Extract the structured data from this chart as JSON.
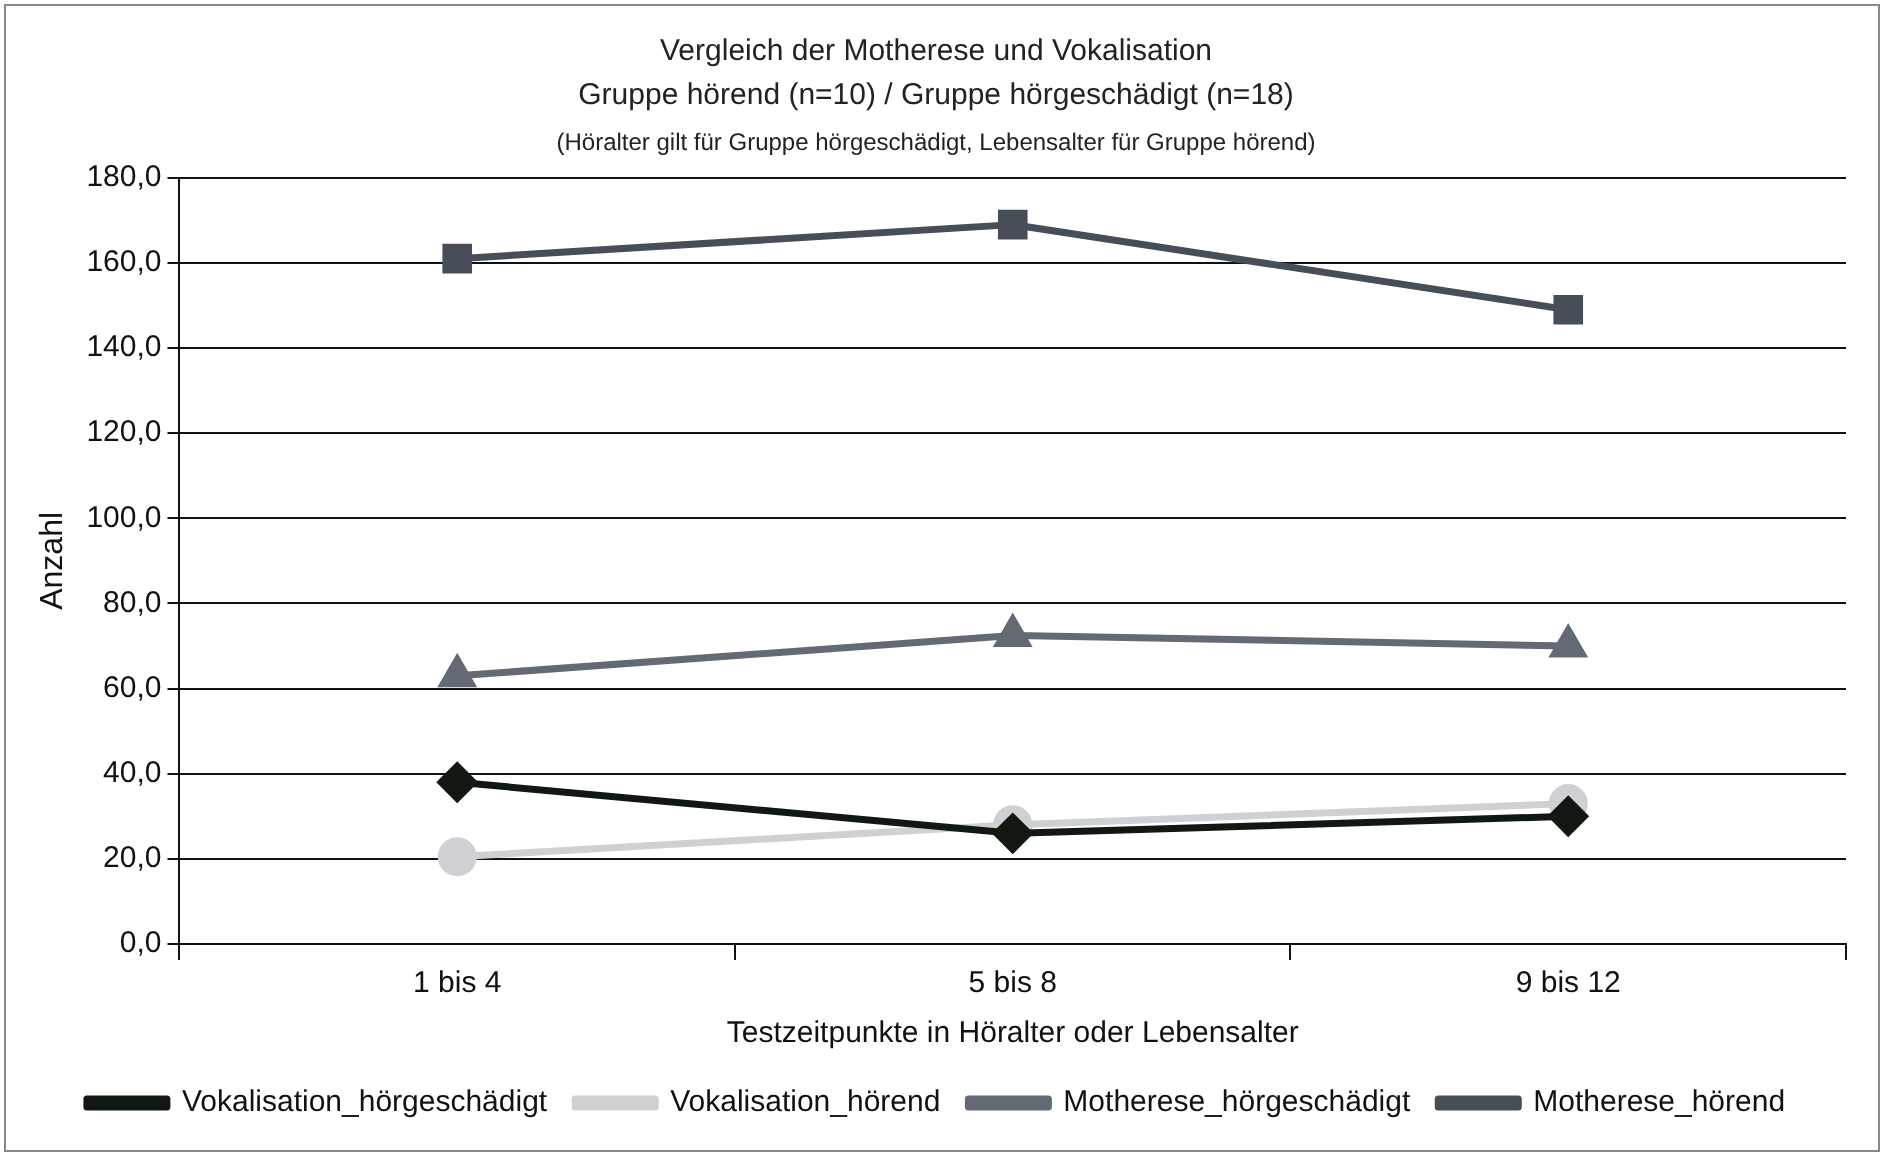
{
  "chart_data": {
    "type": "line",
    "title": "Vergleich der Motherese und Vokalisation",
    "subtitle": "Gruppe hörend (n=10) / Gruppe hörgeschädigt (n=18)",
    "annotations": [
      "(Höralter gilt für Gruppe hörgeschädigt, Lebensalter für Gruppe hörend)"
    ],
    "xlabel": "Testzeitpunkte in Höralter oder Lebensalter",
    "ylabel": "Anzahl",
    "categories": [
      "1 bis 4",
      "5 bis 8",
      "9 bis 12"
    ],
    "series": [
      {
        "name": "Motherese_hörend",
        "color": "#474e57",
        "marker": "square",
        "values": [
          161,
          169,
          149
        ]
      },
      {
        "name": "Motherese_hörgeschädigt",
        "color": "#646a74",
        "marker": "triangle",
        "values": [
          63,
          72.5,
          70
        ]
      },
      {
        "name": "Vokalisation_hörend",
        "color": "#cfd0d3",
        "marker": "circle",
        "values": [
          20.5,
          28,
          33
        ]
      },
      {
        "name": "Vokalisation_hörgeschädigt",
        "color": "#111811",
        "marker": "diamond",
        "values": [
          38,
          26,
          30
        ]
      }
    ],
    "ylim": [
      0,
      180
    ],
    "yticks": [
      {
        "value": 0,
        "label": "0,0"
      },
      {
        "value": 20,
        "label": "20,0"
      },
      {
        "value": 40,
        "label": "40,0"
      },
      {
        "value": 60,
        "label": "60,0"
      },
      {
        "value": 80,
        "label": "80,0"
      },
      {
        "value": 100,
        "label": "100,0"
      },
      {
        "value": 120,
        "label": "120,0"
      },
      {
        "value": 140,
        "label": "140,0"
      },
      {
        "value": 160,
        "label": "160,0"
      },
      {
        "value": 180,
        "label": "180,0"
      }
    ],
    "grid": "y",
    "legend": "bottom",
    "line_style": "solid"
  }
}
